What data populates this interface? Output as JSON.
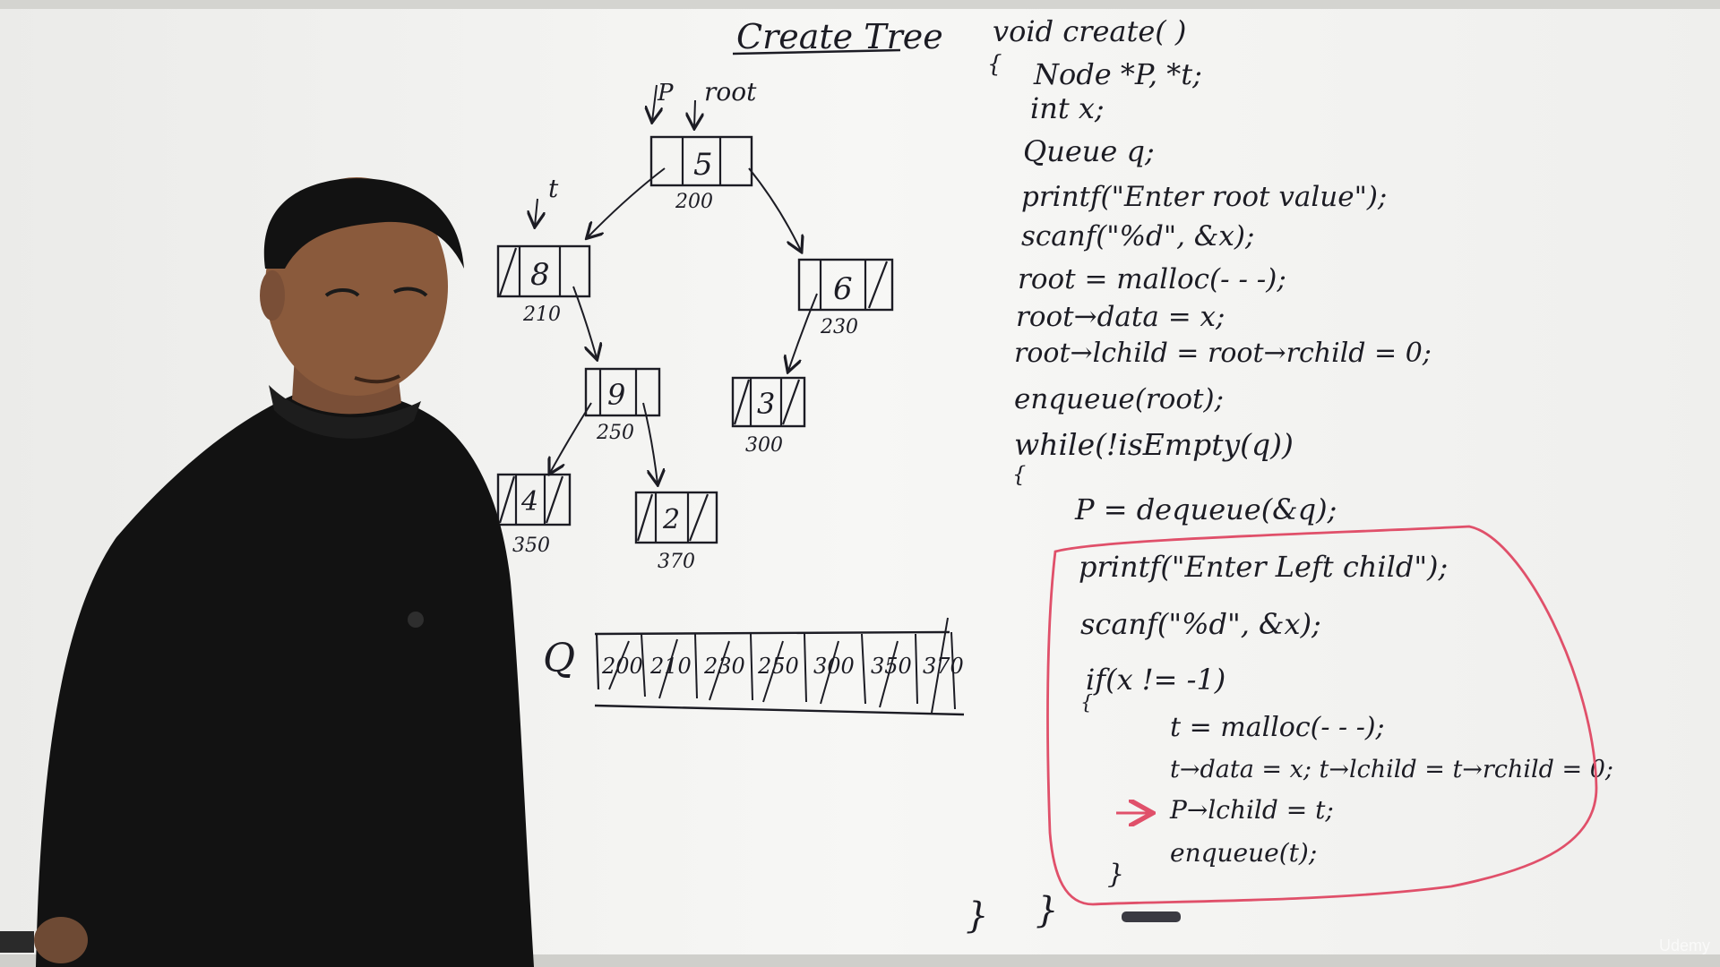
{
  "board": {
    "title": "Create Tree",
    "watermark": "Udemy"
  },
  "pointer_labels": {
    "p": "P",
    "root": "root",
    "t": "t"
  },
  "tree": {
    "nodes": [
      {
        "id": "n5",
        "value": "5",
        "address": "200"
      },
      {
        "id": "n8",
        "value": "8",
        "address": "210"
      },
      {
        "id": "n6",
        "value": "6",
        "address": "230"
      },
      {
        "id": "n9",
        "value": "9",
        "address": "250"
      },
      {
        "id": "n3",
        "value": "3",
        "address": "300"
      },
      {
        "id": "n4",
        "value": "4",
        "address": "350"
      },
      {
        "id": "n2",
        "value": "2",
        "address": "370"
      }
    ]
  },
  "queue": {
    "label": "Q",
    "cells": [
      "200",
      "210",
      "230",
      "250",
      "300",
      "350",
      "370"
    ]
  },
  "code": {
    "lines": [
      "void create( )",
      "{",
      "Node *P, *t;",
      "int x;",
      "Queue q;",
      "printf(\"Enter root value\");",
      "scanf(\"%d\", &x);",
      "root = malloc(- - -);",
      "root→data = x;",
      "root→lchild = root→rchild = 0;",
      "enqueue(root);",
      "while(!isEmpty(q))",
      "{",
      "P = dequeue(&q);",
      "printf(\"Enter Left child\");",
      "scanf(\"%d\", &x);",
      "if(x != -1)",
      "{",
      "t = malloc(- - -);",
      "t→data = x; t→lchild = t→rchild = 0;",
      "P→lchild = t;",
      "enqueue(t);",
      "}",
      "}",
      "}"
    ]
  },
  "colors": {
    "board": "#f6f6f4",
    "marker": "#1c1c24",
    "highlight": "#e0506a",
    "shirt": "#121212",
    "skin": "#8a5a3c"
  }
}
